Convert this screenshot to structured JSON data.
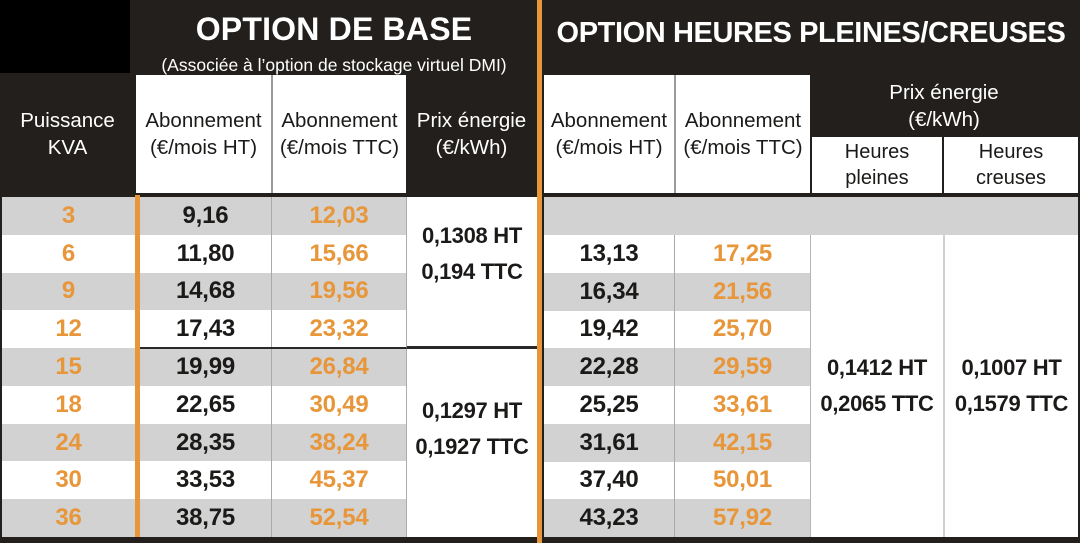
{
  "tables": {
    "base": {
      "title": "OPTION DE BASE",
      "subtitle": "(Associée à l’option de stockage virtuel DMI)",
      "columns": {
        "puissance_l1": "Puissance",
        "puissance_l2": "KVA",
        "ht_l1": "Abonnement",
        "ht_l2": "(€/mois HT)",
        "ttc_l1": "Abonnement",
        "ttc_l2": "(€/mois TTC)",
        "energie_l1": "Prix énergie",
        "energie_l2": "(€/kWh)"
      }
    },
    "hpc": {
      "title": "OPTION HEURES PLEINES/CREUSES",
      "columns": {
        "ht_l1": "Abonnement",
        "ht_l2": "(€/mois HT)",
        "ttc_l1": "Abonnement",
        "ttc_l2": "(€/mois TTC)",
        "energie_l1": "Prix énergie",
        "energie_l2": "(€/kWh)",
        "pleines_l1": "Heures",
        "pleines_l2": "pleines",
        "creuses_l1": "Heures",
        "creuses_l2": "creuses"
      }
    }
  },
  "colors": {
    "accent_orange": "#E8963A",
    "header_dark": "#221F1C",
    "row_gray": "#D2D2D2",
    "black_block": "#000000"
  },
  "chart_data": {
    "type": "table",
    "row_header": "Puissance KVA",
    "categories": [
      "3",
      "6",
      "9",
      "12",
      "15",
      "18",
      "24",
      "30",
      "36"
    ],
    "rows": [
      {
        "kva": "3",
        "base_ht": "9,16",
        "base_ttc": "12,03",
        "hpc_ht": "",
        "hpc_ttc": ""
      },
      {
        "kva": "6",
        "base_ht": "11,80",
        "base_ttc": "15,66",
        "hpc_ht": "13,13",
        "hpc_ttc": "17,25"
      },
      {
        "kva": "9",
        "base_ht": "14,68",
        "base_ttc": "19,56",
        "hpc_ht": "16,34",
        "hpc_ttc": "21,56"
      },
      {
        "kva": "12",
        "base_ht": "17,43",
        "base_ttc": "23,32",
        "hpc_ht": "19,42",
        "hpc_ttc": "25,70"
      },
      {
        "kva": "15",
        "base_ht": "19,99",
        "base_ttc": "26,84",
        "hpc_ht": "22,28",
        "hpc_ttc": "29,59"
      },
      {
        "kva": "18",
        "base_ht": "22,65",
        "base_ttc": "30,49",
        "hpc_ht": "25,25",
        "hpc_ttc": "33,61"
      },
      {
        "kva": "24",
        "base_ht": "28,35",
        "base_ttc": "38,24",
        "hpc_ht": "31,61",
        "hpc_ttc": "42,15"
      },
      {
        "kva": "30",
        "base_ht": "33,53",
        "base_ttc": "45,37",
        "hpc_ht": "37,40",
        "hpc_ttc": "50,01"
      },
      {
        "kva": "36",
        "base_ht": "38,75",
        "base_ttc": "52,54",
        "hpc_ht": "43,23",
        "hpc_ttc": "57,92"
      }
    ],
    "energy": {
      "base_rows_3_12": {
        "ht": "0,1308 HT",
        "ttc": "0,194 TTC"
      },
      "base_rows_15_36": {
        "ht": "0,1297 HT",
        "ttc": "0,1927 TTC"
      },
      "heures_pleines": {
        "ht": "0,1412 HT",
        "ttc": "0,2065 TTC"
      },
      "heures_creuses": {
        "ht": "0,1007 HT",
        "ttc": "0,1579 TTC"
      }
    }
  }
}
